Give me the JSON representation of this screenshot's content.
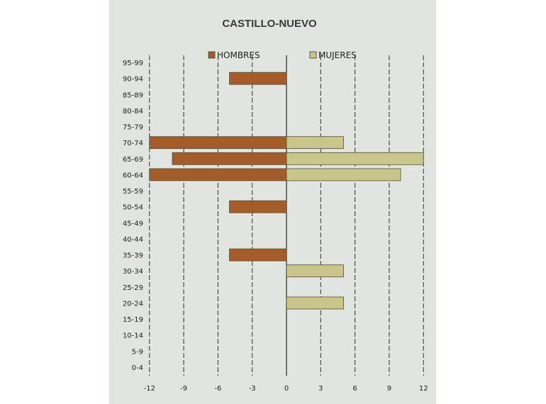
{
  "chart_data": {
    "type": "bar",
    "orientation": "horizontal",
    "title": "CASTILLO-NUEVO",
    "categories": [
      "0-4",
      "5-9",
      "10-14",
      "15-19",
      "20-24",
      "25-29",
      "30-34",
      "35-39",
      "40-44",
      "45-49",
      "50-54",
      "55-59",
      "60-64",
      "65-69",
      "70-74",
      "75-79",
      "80-84",
      "85-89",
      "90-94",
      "95-99"
    ],
    "series": [
      {
        "name": "HOMBRES",
        "color": "#a65b2a",
        "values": [
          0,
          0,
          0,
          0,
          0,
          0,
          0,
          -5,
          0,
          0,
          -5,
          0,
          -12,
          -10,
          -12,
          0,
          0,
          0,
          -5,
          0
        ]
      },
      {
        "name": "MUJERES",
        "color": "#c8c68a",
        "values": [
          0,
          0,
          0,
          0,
          5,
          0,
          5,
          0,
          0,
          0,
          0,
          0,
          10,
          12,
          5,
          0,
          0,
          0,
          0,
          0
        ]
      }
    ],
    "xlim": [
      -12,
      12
    ],
    "xticks": [
      "-12",
      "-9",
      "-6",
      "-3",
      "0",
      "3",
      "6",
      "9",
      "12"
    ],
    "grid": "vertical dashed",
    "legend": "top"
  }
}
